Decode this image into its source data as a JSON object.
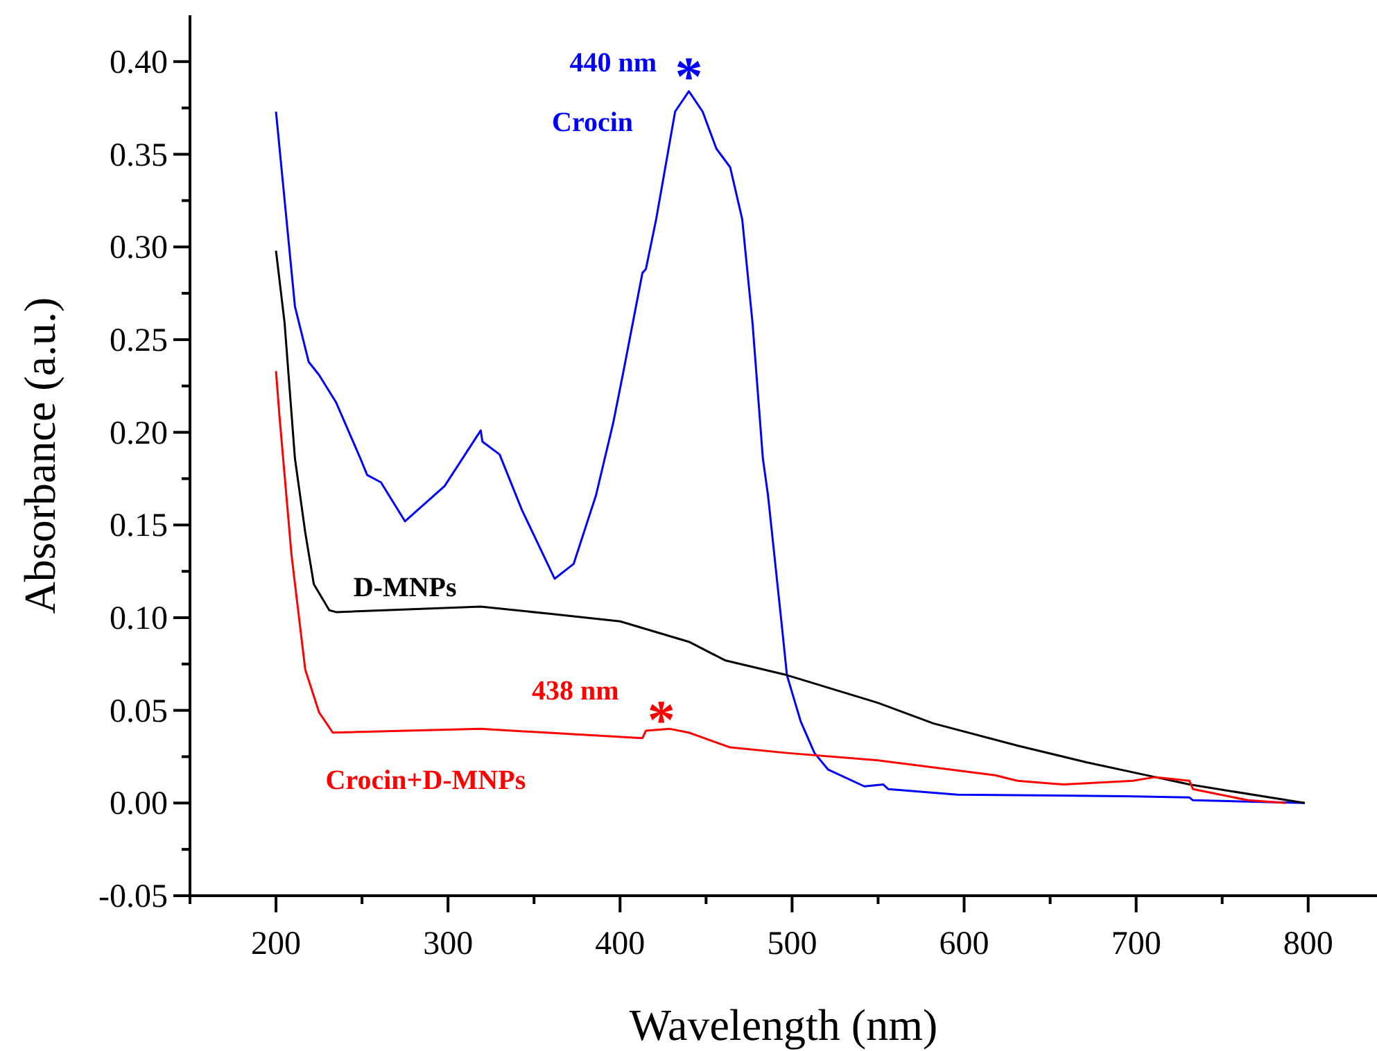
{
  "chart_data": {
    "type": "line",
    "xlabel": "Wavelength  (nm)",
    "ylabel": "Absorbance (a.u.)",
    "xlim": [
      150,
      840
    ],
    "ylim": [
      -0.05,
      0.425
    ],
    "xticks": [
      {
        "value": 150,
        "label": null
      },
      200,
      {
        "value": 250,
        "label": null
      },
      300,
      {
        "value": 350,
        "label": null
      },
      400,
      {
        "value": 450,
        "label": null
      },
      500,
      {
        "value": 550,
        "label": null
      },
      600,
      {
        "value": 650,
        "label": null
      },
      700,
      {
        "value": 750,
        "label": null
      },
      800
    ],
    "yticks": [
      {
        "value": -0.05,
        "label": "-0.05"
      },
      {
        "value": -0.025,
        "label": null
      },
      {
        "value": 0,
        "label": "0.00"
      },
      {
        "value": 0.025,
        "label": null
      },
      {
        "value": 0.05,
        "label": "0.05"
      },
      {
        "value": 0.075,
        "label": null
      },
      {
        "value": 0.1,
        "label": "0.10"
      },
      {
        "value": 0.125,
        "label": null
      },
      {
        "value": 0.15,
        "label": "0.15"
      },
      {
        "value": 0.175,
        "label": null
      },
      {
        "value": 0.2,
        "label": "0.20"
      },
      {
        "value": 0.225,
        "label": null
      },
      {
        "value": 0.25,
        "label": "0.25"
      },
      {
        "value": 0.275,
        "label": null
      },
      {
        "value": 0.3,
        "label": "0.30"
      },
      {
        "value": 0.325,
        "label": null
      },
      {
        "value": 0.35,
        "label": "0.35"
      },
      {
        "value": 0.375,
        "label": null
      },
      {
        "value": 0.4,
        "label": "0.40"
      }
    ],
    "marker": "none",
    "line_style": "solid",
    "series": [
      {
        "name": "Crocin",
        "color": "#0000ff",
        "x": [
          200,
          211,
          219,
          225,
          235,
          249,
          253,
          261,
          275,
          298,
          319,
          320,
          330,
          343,
          362,
          373,
          386,
          396,
          402,
          413,
          415,
          421,
          432,
          440,
          448,
          456,
          464,
          471,
          477,
          483,
          486,
          494,
          497,
          505,
          513,
          521,
          542,
          553,
          556,
          596,
          693,
          731,
          733,
          798
        ],
        "values": [
          0.373,
          0.268,
          0.238,
          0.231,
          0.216,
          0.186,
          0.177,
          0.173,
          0.152,
          0.171,
          0.201,
          0.195,
          0.188,
          0.158,
          0.121,
          0.129,
          0.166,
          0.205,
          0.233,
          0.286,
          0.288,
          0.315,
          0.373,
          0.384,
          0.373,
          0.353,
          0.343,
          0.315,
          0.259,
          0.186,
          0.166,
          0.096,
          0.069,
          0.044,
          0.027,
          0.018,
          0.009,
          0.01,
          0.0075,
          0.0045,
          0.0037,
          0.003,
          0.0015,
          0
        ]
      },
      {
        "name": "D-MNPs",
        "color": "#000000",
        "x": [
          200,
          205,
          211,
          217,
          222,
          231,
          235,
          319,
          360,
          400,
          440,
          461,
          497,
          550,
          582,
          631,
          671,
          711,
          731,
          798
        ],
        "values": [
          0.298,
          0.259,
          0.186,
          0.146,
          0.118,
          0.104,
          0.103,
          0.106,
          0.102,
          0.098,
          0.087,
          0.077,
          0.069,
          0.054,
          0.043,
          0.031,
          0.022,
          0.014,
          0.01,
          0
        ]
      },
      {
        "name": "Crocin+D-MNPs",
        "color": "#ff0000",
        "x": [
          200,
          202,
          209,
          217,
          225,
          233,
          319,
          413,
          415,
          429,
          440,
          464,
          497,
          550,
          618,
          631,
          658,
          698,
          711,
          731,
          733,
          765,
          787
        ],
        "values": [
          0.233,
          0.209,
          0.134,
          0.072,
          0.049,
          0.038,
          0.04,
          0.035,
          0.039,
          0.04,
          0.038,
          0.03,
          0.027,
          0.023,
          0.015,
          0.012,
          0.01,
          0.012,
          0.014,
          0.012,
          0.0075,
          0.0015,
          0
        ]
      }
    ],
    "annotations": [
      "440 nm",
      "*",
      "438 nm",
      "*"
    ]
  }
}
